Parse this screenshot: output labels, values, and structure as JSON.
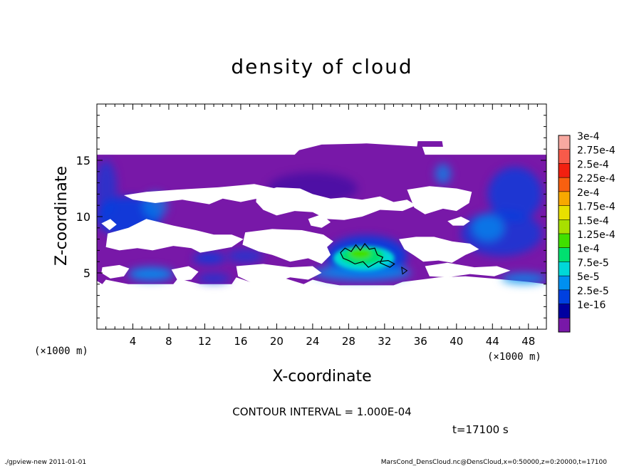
{
  "chart_data": {
    "type": "heatmap",
    "title": "density of cloud",
    "xlabel": "X-coordinate",
    "ylabel": "Z-coordinate",
    "xunits": "(×1000 m)",
    "yunits": "(×1000 m)",
    "xlim": [
      0,
      50
    ],
    "ylim": [
      0,
      20
    ],
    "xticks": [
      4,
      8,
      12,
      16,
      20,
      24,
      28,
      32,
      36,
      40,
      44,
      48
    ],
    "xtick_labels": [
      "4",
      "8",
      "12",
      "16",
      "20",
      "24",
      "28",
      "32",
      "36",
      "40",
      "44",
      "48"
    ],
    "yticks": [
      5,
      10,
      15
    ],
    "ytick_labels": [
      "5",
      "10",
      "15"
    ],
    "contour_interval": "CONTOUR INTERVAL = 1.000E-04",
    "time_label": "t=17100 s",
    "colorbar": {
      "levels": [
        "3e-4",
        "2.75e-4",
        "2.5e-4",
        "2.25e-4",
        "2e-4",
        "1.75e-4",
        "1.5e-4",
        "1.25e-4",
        "1e-4",
        "7.5e-5",
        "5e-5",
        "2.5e-5",
        "1e-16"
      ],
      "colors": [
        "#f7a8a0",
        "#f85a4a",
        "#f22010",
        "#f86010",
        "#f8a800",
        "#e8e000",
        "#a8e000",
        "#40e000",
        "#00e070",
        "#00d8d8",
        "#0090f0",
        "#0040e0",
        "#0000a0",
        "#7818a8"
      ]
    },
    "regions": [
      {
        "name": "base cloud layer",
        "x": [
          0,
          50
        ],
        "z": [
          4.0,
          15.5
        ],
        "value_class": "1e-16"
      },
      {
        "name": "top bump",
        "x": [
          22.5,
          36.5
        ],
        "z": [
          15.5,
          16.5
        ],
        "value_class": "1e-16"
      },
      {
        "name": "detached cloud",
        "x": [
          35.5,
          38.5
        ],
        "z": [
          16.2,
          16.7
        ],
        "value_class": "1e-16"
      },
      {
        "name": "core maximum",
        "x": [
          26.8,
          33.5
        ],
        "z": [
          5.3,
          7.5
        ],
        "value_class": "1.25e-4 to 1.5e-4"
      },
      {
        "name": "right upper enhanced region",
        "x": [
          40,
          50
        ],
        "z": [
          6,
          15
        ],
        "value_class": "2.5e-5 to 5e-5"
      },
      {
        "name": "left enhanced region",
        "x": [
          0,
          9
        ],
        "z": [
          8,
          14
        ],
        "value_class": "2.5e-5 to 5e-5"
      },
      {
        "name": "lower layer enhanced region",
        "x": [
          0,
          50
        ],
        "z": [
          4.0,
          6.0
        ],
        "value_class": "2.5e-5 to 7.5e-5"
      }
    ]
  },
  "footer": {
    "left": "./gpview-new  2011-01-01",
    "right": "MarsCond_DensCloud.nc@DensCloud,x=0:50000,z=0:20000,t=17100"
  }
}
